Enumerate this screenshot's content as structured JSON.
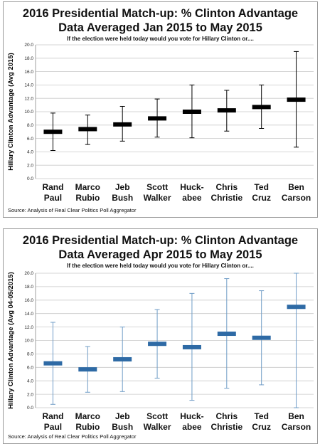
{
  "chart_data": [
    {
      "type": "errorbar",
      "title_line1": "2016 Presidential Match-up: % Clinton Advantage",
      "title_line2": "Data Averaged Jan 2015 to May 2015",
      "subtitle": "If the election were held today would you vote for Hillary Clinton or....",
      "ylabel": "Hillary Clinton Advantage (Avg 2015)",
      "source": "Source: Analysis of Real Clear Politics Poll Aggregator",
      "ylim": [
        0,
        20
      ],
      "yticks": [
        "0.0",
        "2.0",
        "4.0",
        "6.0",
        "8.0",
        "10.0",
        "12.0",
        "14.0",
        "16.0",
        "18.0",
        "20.0"
      ],
      "grid": true,
      "marker_color": "#000000",
      "whisker_color": "#000000",
      "categories": [
        {
          "line1": "Rand",
          "line2": "Paul"
        },
        {
          "line1": "Marco",
          "line2": "Rubio"
        },
        {
          "line1": "Jeb",
          "line2": "Bush"
        },
        {
          "line1": "Scott",
          "line2": "Walker"
        },
        {
          "line1": "Huck-",
          "line2": "abee"
        },
        {
          "line1": "Chris",
          "line2": "Christie"
        },
        {
          "line1": "Ted",
          "line2": "Cruz"
        },
        {
          "line1": "Ben",
          "line2": "Carson"
        }
      ],
      "values": [
        7.0,
        7.4,
        8.1,
        9.0,
        10.0,
        10.2,
        10.7,
        11.8
      ],
      "high": [
        9.8,
        9.5,
        10.8,
        11.9,
        14.0,
        13.2,
        14.0,
        19.0
      ],
      "low": [
        4.2,
        5.1,
        5.6,
        6.2,
        6.1,
        7.1,
        7.5,
        4.7
      ]
    },
    {
      "type": "errorbar",
      "title_line1": "2016 Presidential Match-up: % Clinton Advantage",
      "title_line2": "Data Averaged Apr 2015 to May 2015",
      "subtitle": "If the election were held today would you vote for Hillary Clinton or....",
      "ylabel": "Hillary Clinton Advantage (Avg 04-05/2015)",
      "source": "Source: Analysis of Real Clear Politics Poll Aggregator",
      "ylim": [
        0,
        20
      ],
      "yticks": [
        "0.0",
        "2.0",
        "4.0",
        "6.0",
        "8.0",
        "10.0",
        "12.0",
        "14.0",
        "16.0",
        "18.0",
        "20.0"
      ],
      "grid": true,
      "marker_color": "#2e6aa5",
      "whisker_color": "#6f9cc6",
      "categories": [
        {
          "line1": "Rand",
          "line2": "Paul"
        },
        {
          "line1": "Marco",
          "line2": "Rubio"
        },
        {
          "line1": "Jeb",
          "line2": "Bush"
        },
        {
          "line1": "Scott",
          "line2": "Walker"
        },
        {
          "line1": "Huck-",
          "line2": "abee"
        },
        {
          "line1": "Chris",
          "line2": "Christie"
        },
        {
          "line1": "Ted",
          "line2": "Cruz"
        },
        {
          "line1": "Ben",
          "line2": "Carson"
        }
      ],
      "values": [
        6.6,
        5.7,
        7.2,
        9.5,
        9.0,
        11.0,
        10.4,
        15.0
      ],
      "high": [
        12.7,
        9.1,
        12.0,
        14.6,
        17.0,
        19.2,
        17.4,
        20.0
      ],
      "low": [
        0.5,
        2.3,
        2.4,
        4.4,
        1.1,
        2.9,
        3.4,
        0.0
      ]
    }
  ]
}
